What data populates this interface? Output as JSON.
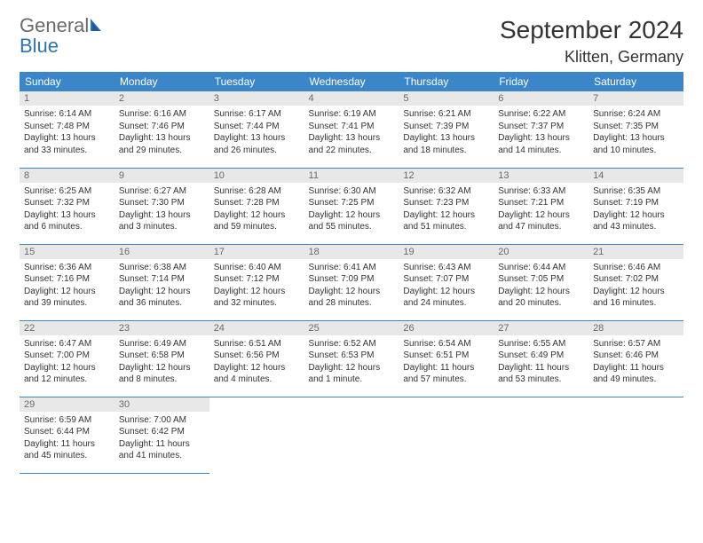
{
  "brand": {
    "part1": "General",
    "part2": "Blue"
  },
  "title": "September 2024",
  "location": "Klitten, Germany",
  "colors": {
    "header_bg": "#3a86c8",
    "header_text": "#ffffff",
    "daynum_bg": "#e8e8e8",
    "daynum_text": "#6a6a6a",
    "row_divider": "#3a86c8",
    "body_text": "#333333",
    "page_bg": "#ffffff",
    "logo_gray": "#6a6a6a",
    "logo_blue": "#2a74b8"
  },
  "typography": {
    "title_fontsize": 28,
    "location_fontsize": 18,
    "dayname_fontsize": 12,
    "daynum_fontsize": 11,
    "body_fontsize": 10
  },
  "weekdays": [
    "Sunday",
    "Monday",
    "Tuesday",
    "Wednesday",
    "Thursday",
    "Friday",
    "Saturday"
  ],
  "days": [
    {
      "n": "1",
      "sunrise": "Sunrise: 6:14 AM",
      "sunset": "Sunset: 7:48 PM",
      "daylight": "Daylight: 13 hours and 33 minutes."
    },
    {
      "n": "2",
      "sunrise": "Sunrise: 6:16 AM",
      "sunset": "Sunset: 7:46 PM",
      "daylight": "Daylight: 13 hours and 29 minutes."
    },
    {
      "n": "3",
      "sunrise": "Sunrise: 6:17 AM",
      "sunset": "Sunset: 7:44 PM",
      "daylight": "Daylight: 13 hours and 26 minutes."
    },
    {
      "n": "4",
      "sunrise": "Sunrise: 6:19 AM",
      "sunset": "Sunset: 7:41 PM",
      "daylight": "Daylight: 13 hours and 22 minutes."
    },
    {
      "n": "5",
      "sunrise": "Sunrise: 6:21 AM",
      "sunset": "Sunset: 7:39 PM",
      "daylight": "Daylight: 13 hours and 18 minutes."
    },
    {
      "n": "6",
      "sunrise": "Sunrise: 6:22 AM",
      "sunset": "Sunset: 7:37 PM",
      "daylight": "Daylight: 13 hours and 14 minutes."
    },
    {
      "n": "7",
      "sunrise": "Sunrise: 6:24 AM",
      "sunset": "Sunset: 7:35 PM",
      "daylight": "Daylight: 13 hours and 10 minutes."
    },
    {
      "n": "8",
      "sunrise": "Sunrise: 6:25 AM",
      "sunset": "Sunset: 7:32 PM",
      "daylight": "Daylight: 13 hours and 6 minutes."
    },
    {
      "n": "9",
      "sunrise": "Sunrise: 6:27 AM",
      "sunset": "Sunset: 7:30 PM",
      "daylight": "Daylight: 13 hours and 3 minutes."
    },
    {
      "n": "10",
      "sunrise": "Sunrise: 6:28 AM",
      "sunset": "Sunset: 7:28 PM",
      "daylight": "Daylight: 12 hours and 59 minutes."
    },
    {
      "n": "11",
      "sunrise": "Sunrise: 6:30 AM",
      "sunset": "Sunset: 7:25 PM",
      "daylight": "Daylight: 12 hours and 55 minutes."
    },
    {
      "n": "12",
      "sunrise": "Sunrise: 6:32 AM",
      "sunset": "Sunset: 7:23 PM",
      "daylight": "Daylight: 12 hours and 51 minutes."
    },
    {
      "n": "13",
      "sunrise": "Sunrise: 6:33 AM",
      "sunset": "Sunset: 7:21 PM",
      "daylight": "Daylight: 12 hours and 47 minutes."
    },
    {
      "n": "14",
      "sunrise": "Sunrise: 6:35 AM",
      "sunset": "Sunset: 7:19 PM",
      "daylight": "Daylight: 12 hours and 43 minutes."
    },
    {
      "n": "15",
      "sunrise": "Sunrise: 6:36 AM",
      "sunset": "Sunset: 7:16 PM",
      "daylight": "Daylight: 12 hours and 39 minutes."
    },
    {
      "n": "16",
      "sunrise": "Sunrise: 6:38 AM",
      "sunset": "Sunset: 7:14 PM",
      "daylight": "Daylight: 12 hours and 36 minutes."
    },
    {
      "n": "17",
      "sunrise": "Sunrise: 6:40 AM",
      "sunset": "Sunset: 7:12 PM",
      "daylight": "Daylight: 12 hours and 32 minutes."
    },
    {
      "n": "18",
      "sunrise": "Sunrise: 6:41 AM",
      "sunset": "Sunset: 7:09 PM",
      "daylight": "Daylight: 12 hours and 28 minutes."
    },
    {
      "n": "19",
      "sunrise": "Sunrise: 6:43 AM",
      "sunset": "Sunset: 7:07 PM",
      "daylight": "Daylight: 12 hours and 24 minutes."
    },
    {
      "n": "20",
      "sunrise": "Sunrise: 6:44 AM",
      "sunset": "Sunset: 7:05 PM",
      "daylight": "Daylight: 12 hours and 20 minutes."
    },
    {
      "n": "21",
      "sunrise": "Sunrise: 6:46 AM",
      "sunset": "Sunset: 7:02 PM",
      "daylight": "Daylight: 12 hours and 16 minutes."
    },
    {
      "n": "22",
      "sunrise": "Sunrise: 6:47 AM",
      "sunset": "Sunset: 7:00 PM",
      "daylight": "Daylight: 12 hours and 12 minutes."
    },
    {
      "n": "23",
      "sunrise": "Sunrise: 6:49 AM",
      "sunset": "Sunset: 6:58 PM",
      "daylight": "Daylight: 12 hours and 8 minutes."
    },
    {
      "n": "24",
      "sunrise": "Sunrise: 6:51 AM",
      "sunset": "Sunset: 6:56 PM",
      "daylight": "Daylight: 12 hours and 4 minutes."
    },
    {
      "n": "25",
      "sunrise": "Sunrise: 6:52 AM",
      "sunset": "Sunset: 6:53 PM",
      "daylight": "Daylight: 12 hours and 1 minute."
    },
    {
      "n": "26",
      "sunrise": "Sunrise: 6:54 AM",
      "sunset": "Sunset: 6:51 PM",
      "daylight": "Daylight: 11 hours and 57 minutes."
    },
    {
      "n": "27",
      "sunrise": "Sunrise: 6:55 AM",
      "sunset": "Sunset: 6:49 PM",
      "daylight": "Daylight: 11 hours and 53 minutes."
    },
    {
      "n": "28",
      "sunrise": "Sunrise: 6:57 AM",
      "sunset": "Sunset: 6:46 PM",
      "daylight": "Daylight: 11 hours and 49 minutes."
    },
    {
      "n": "29",
      "sunrise": "Sunrise: 6:59 AM",
      "sunset": "Sunset: 6:44 PM",
      "daylight": "Daylight: 11 hours and 45 minutes."
    },
    {
      "n": "30",
      "sunrise": "Sunrise: 7:00 AM",
      "sunset": "Sunset: 6:42 PM",
      "daylight": "Daylight: 11 hours and 41 minutes."
    }
  ]
}
